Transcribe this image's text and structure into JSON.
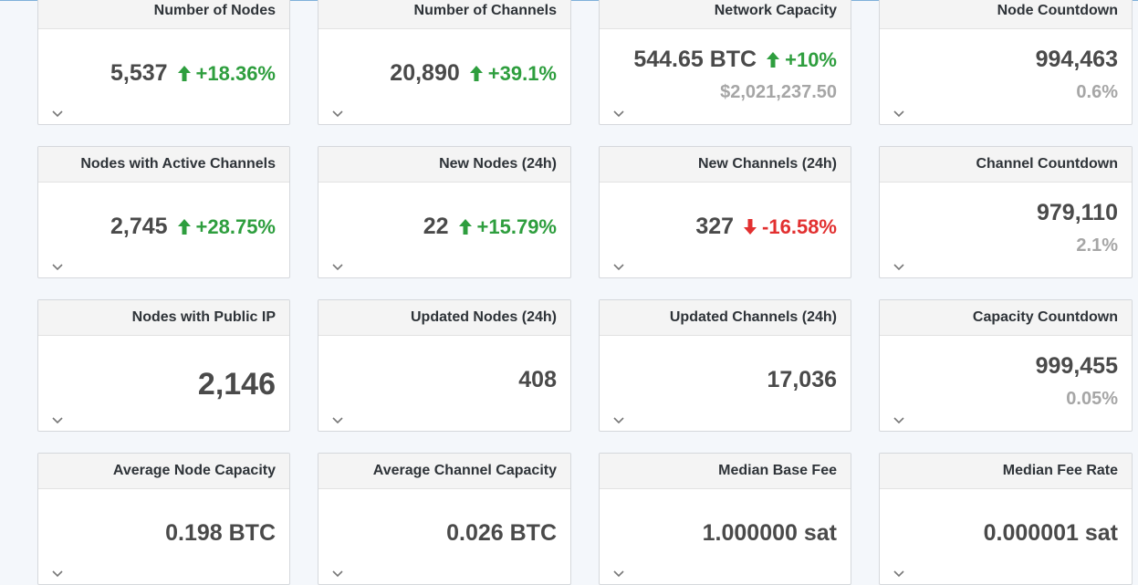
{
  "cards": [
    {
      "title": "Number of Nodes",
      "value": "5,537",
      "change": "+18.36%",
      "dir": "up"
    },
    {
      "title": "Number of Channels",
      "value": "20,890",
      "change": "+39.1%",
      "dir": "up"
    },
    {
      "title": "Network Capacity",
      "value": "544.65 BTC",
      "change": "+10%",
      "dir": "up",
      "sub": "$2,021,237.50"
    },
    {
      "title": "Node Countdown",
      "value": "994,463",
      "sub": "0.6%"
    },
    {
      "title": "Nodes with Active Channels",
      "value": "2,745",
      "change": "+28.75%",
      "dir": "up"
    },
    {
      "title": "New Nodes (24h)",
      "value": "22",
      "change": "+15.79%",
      "dir": "up"
    },
    {
      "title": "New Channels (24h)",
      "value": "327",
      "change": "-16.58%",
      "dir": "down"
    },
    {
      "title": "Channel Countdown",
      "value": "979,110",
      "sub": "2.1%"
    },
    {
      "title": "Nodes with Public IP",
      "value": "2,146",
      "big": true
    },
    {
      "title": "Updated Nodes (24h)",
      "value": "408"
    },
    {
      "title": "Updated Channels (24h)",
      "value": "17,036"
    },
    {
      "title": "Capacity Countdown",
      "value": "999,455",
      "sub": "0.05%"
    },
    {
      "title": "Average Node Capacity",
      "value": "0.198 BTC"
    },
    {
      "title": "Average Channel Capacity",
      "value": "0.026 BTC"
    },
    {
      "title": "Median Base Fee",
      "value": "1.000000 sat"
    },
    {
      "title": "Median Fee Rate",
      "value": "0.000001 sat"
    }
  ],
  "icons": {
    "up": "arrow-up-icon",
    "down": "arrow-down-icon",
    "expand": "chevron-down-icon"
  },
  "colors": {
    "up": "#2e9e3e",
    "down": "#e23030",
    "muted": "#a6a6a6",
    "accent": "#7fb0da"
  }
}
